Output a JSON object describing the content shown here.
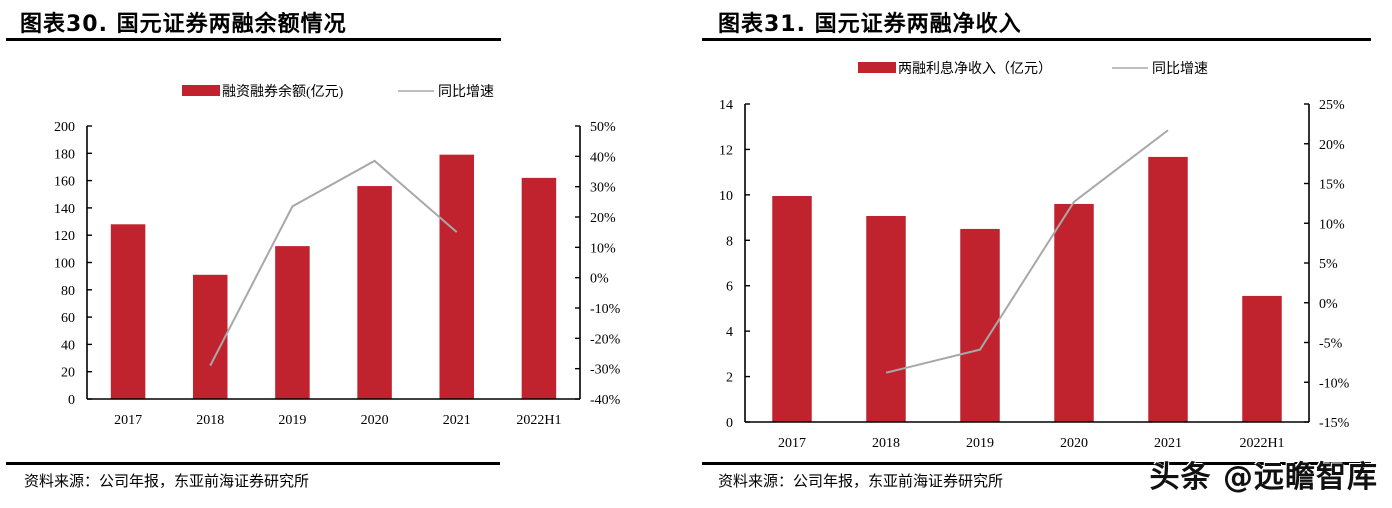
{
  "left": {
    "title": "图表30. 国元证券两融余额情况",
    "source": "资料来源：公司年报，东亚前海证券研究所",
    "legend": {
      "bar": "融资融券余额(亿元)",
      "line": "同比增速"
    }
  },
  "right": {
    "title": "图表31. 国元证券两融净收入",
    "source": "资料来源：公司年报，东亚前海证券研究所",
    "legend": {
      "bar": "两融利息净收入（亿元）",
      "line": "同比增速"
    }
  },
  "watermark": "头条 @远瞻智库",
  "colors": {
    "bar": "#C0222E",
    "line": "#A8A8A8",
    "axis": "#000000"
  },
  "chart_data": [
    {
      "type": "bar",
      "title": "图表30. 国元证券两融余额情况",
      "categories": [
        "2017",
        "2018",
        "2019",
        "2020",
        "2021",
        "2022H1"
      ],
      "series": [
        {
          "name": "融资融券余额(亿元)",
          "type": "bar",
          "axis": "left",
          "values": [
            128,
            91,
            112,
            156,
            179,
            162
          ]
        },
        {
          "name": "同比增速",
          "type": "line",
          "axis": "right",
          "values": [
            null,
            -29,
            23.5,
            38.5,
            15,
            null
          ]
        }
      ],
      "y_left": {
        "min": 0,
        "max": 200,
        "step": 20,
        "ticks": [
          "0",
          "20",
          "40",
          "60",
          "80",
          "100",
          "120",
          "140",
          "160",
          "180",
          "200"
        ]
      },
      "y_right": {
        "min": -40,
        "max": 50,
        "step": 10,
        "ticks": [
          "-40%",
          "-30%",
          "-20%",
          "-10%",
          "0%",
          "10%",
          "20%",
          "30%",
          "40%",
          "50%"
        ]
      },
      "xlabel": "",
      "ylabel": "",
      "grid": false,
      "legend_position": "top"
    },
    {
      "type": "bar",
      "title": "图表31. 国元证券两融净收入",
      "categories": [
        "2017",
        "2018",
        "2019",
        "2020",
        "2021",
        "2022H1"
      ],
      "series": [
        {
          "name": "两融利息净收入（亿元）",
          "type": "bar",
          "axis": "left",
          "values": [
            9.95,
            9.07,
            8.5,
            9.6,
            11.67,
            5.55
          ]
        },
        {
          "name": "同比增速",
          "type": "line",
          "axis": "right",
          "values": [
            null,
            -8.8,
            -5.9,
            12.7,
            21.7,
            null
          ]
        }
      ],
      "y_left": {
        "min": 0,
        "max": 14,
        "step": 2,
        "ticks": [
          "0",
          "2",
          "4",
          "6",
          "8",
          "10",
          "12",
          "14"
        ]
      },
      "y_right": {
        "min": -15,
        "max": 25,
        "step": 5,
        "ticks": [
          "-15%",
          "-10%",
          "-5%",
          "0%",
          "5%",
          "10%",
          "15%",
          "20%",
          "25%"
        ]
      },
      "xlabel": "",
      "ylabel": "",
      "grid": false,
      "legend_position": "top"
    }
  ]
}
